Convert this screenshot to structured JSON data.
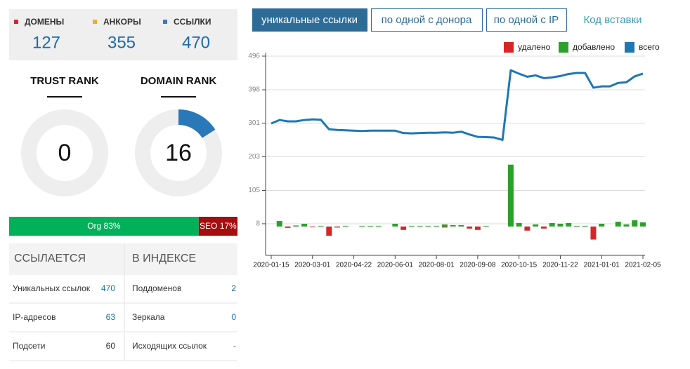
{
  "summary": [
    {
      "label": "ДОМЕНЫ",
      "value": 127,
      "color": "#d62728"
    },
    {
      "label": "АНКОРЫ",
      "value": 355,
      "color": "#f0ad1e"
    },
    {
      "label": "ССЫЛКИ",
      "value": 470,
      "color": "#3b78c9"
    }
  ],
  "ranks": [
    {
      "title": "TRUST RANK",
      "value": 0,
      "lim": [
        0,
        100
      ]
    },
    {
      "title": "DOMAIN RANK",
      "value": 16,
      "lim": [
        0,
        100
      ]
    }
  ],
  "split": [
    {
      "label": "Org 83%",
      "value": 83,
      "color": "#00b15a"
    },
    {
      "label": "SEO 17%",
      "value": 17,
      "color": "#a50e0e"
    }
  ],
  "table": [
    {
      "header": "ССЫЛАЕТСЯ",
      "rows": [
        {
          "label": "Уникальных ссылок",
          "value": 470,
          "color": "#1f6aa5"
        },
        {
          "label": "IP-адресов",
          "value": 63,
          "color": "#1f6aa5"
        },
        {
          "label": "Подсети",
          "value": 60,
          "color": "#333333"
        }
      ]
    },
    {
      "header": "В ИНДЕКСЕ",
      "rows": [
        {
          "label": "Поддоменов",
          "value": 2,
          "color": "#1f6aa5"
        },
        {
          "label": "Зеркала",
          "value": 0,
          "color": "#1f6aa5"
        },
        {
          "label": "Исходящих ссылок",
          "value": "-",
          "color": "#1f6aa5"
        }
      ]
    }
  ],
  "tabs": [
    {
      "label": "уникальные ссылки",
      "active": true
    },
    {
      "label": "по одной с донора",
      "active": false
    },
    {
      "label": "по одной с IP",
      "active": false
    }
  ],
  "embed_link": "Код вставки",
  "chart_data": {
    "type": "combo",
    "categories": [
      "2020-01-15",
      null,
      null,
      null,
      null,
      "2020-03-01",
      null,
      null,
      null,
      null,
      "2020-04-22",
      null,
      null,
      null,
      null,
      "2020-06-01",
      null,
      null,
      null,
      null,
      "2020-08-01",
      null,
      null,
      null,
      null,
      "2020-09-08",
      null,
      null,
      null,
      null,
      "2020-10-15",
      null,
      null,
      null,
      null,
      "2020-11-22",
      null,
      null,
      null,
      null,
      "2021-01-01",
      null,
      null,
      null,
      null,
      "2021-02-05"
    ],
    "series": [
      {
        "name": "удалено",
        "kind": "bar",
        "color": "#d62728",
        "values": [
          0,
          0,
          -4,
          0,
          0,
          -2,
          0,
          -27,
          -3,
          0,
          0,
          0,
          0,
          0,
          0,
          0,
          -10,
          0,
          0,
          0,
          0,
          -3,
          0,
          0,
          -6,
          -10,
          0,
          0,
          0,
          0,
          0,
          -12,
          0,
          -6,
          0,
          0,
          0,
          0,
          0,
          -38,
          0,
          0,
          0,
          0,
          0,
          0
        ]
      },
      {
        "name": "добавлено",
        "kind": "bar",
        "color": "#2ca02c",
        "values": [
          0,
          16,
          0,
          3,
          8,
          0,
          2,
          0,
          0,
          2,
          0,
          2,
          2,
          2,
          0,
          8,
          0,
          2,
          2,
          2,
          2,
          6,
          4,
          4,
          0,
          0,
          2,
          0,
          0,
          180,
          10,
          0,
          6,
          0,
          10,
          8,
          10,
          2,
          2,
          0,
          8,
          0,
          14,
          6,
          18,
          12
        ]
      },
      {
        "name": "всего",
        "kind": "line",
        "color": "#1f77b4",
        "values": [
          300,
          310,
          306,
          306,
          310,
          312,
          311,
          283,
          281,
          280,
          279,
          278,
          279,
          279,
          279,
          279,
          272,
          271,
          272,
          273,
          273,
          274,
          273,
          276,
          268,
          261,
          260,
          259,
          252,
          455,
          445,
          436,
          440,
          432,
          434,
          438,
          444,
          447,
          447,
          404,
          408,
          408,
          418,
          420,
          437,
          445
        ]
      }
    ],
    "ylim": [
      -84,
      496
    ],
    "yticks": [
      8,
      105,
      203,
      301,
      398,
      496
    ],
    "grid": true,
    "legend": "top-right"
  }
}
